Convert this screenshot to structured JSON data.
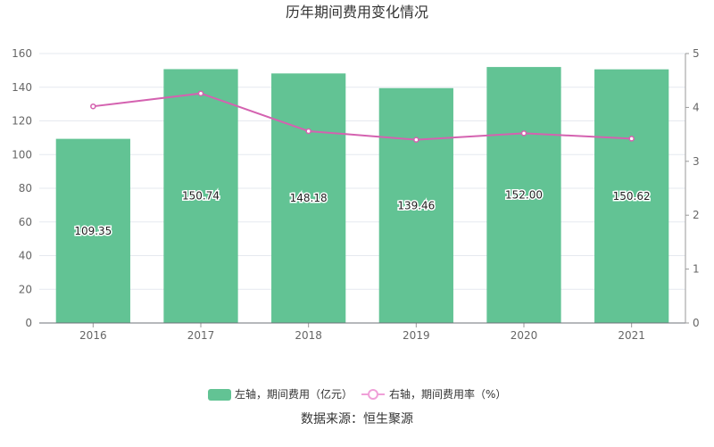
{
  "chart_data": {
    "type": "bar",
    "title": "历年期间费用变化情况",
    "categories": [
      "2016",
      "2017",
      "2018",
      "2019",
      "2020",
      "2021"
    ],
    "series": [
      {
        "name": "左轴，期间费用（亿元）",
        "type": "bar",
        "axis": "left",
        "values": [
          109.35,
          150.74,
          148.18,
          139.46,
          152.0,
          150.62
        ],
        "labels": [
          "109.35",
          "150.74",
          "148.18",
          "139.46",
          "152.00",
          "150.62"
        ],
        "color": "#62c394"
      },
      {
        "name": "右轴，期间费用率（%）",
        "type": "line",
        "axis": "right",
        "values": [
          4.02,
          4.26,
          3.56,
          3.4,
          3.52,
          3.42
        ],
        "color": "#d462b0"
      }
    ],
    "left_axis": {
      "min": 0,
      "max": 160,
      "ticks": [
        "0",
        "20",
        "40",
        "60",
        "80",
        "100",
        "120",
        "140",
        "160"
      ]
    },
    "right_axis": {
      "min": 0,
      "max": 5,
      "ticks": [
        "0",
        "1",
        "2",
        "3",
        "4",
        "5"
      ]
    },
    "grid": true,
    "legend_position": "bottom"
  },
  "source": "数据来源：恒生聚源"
}
